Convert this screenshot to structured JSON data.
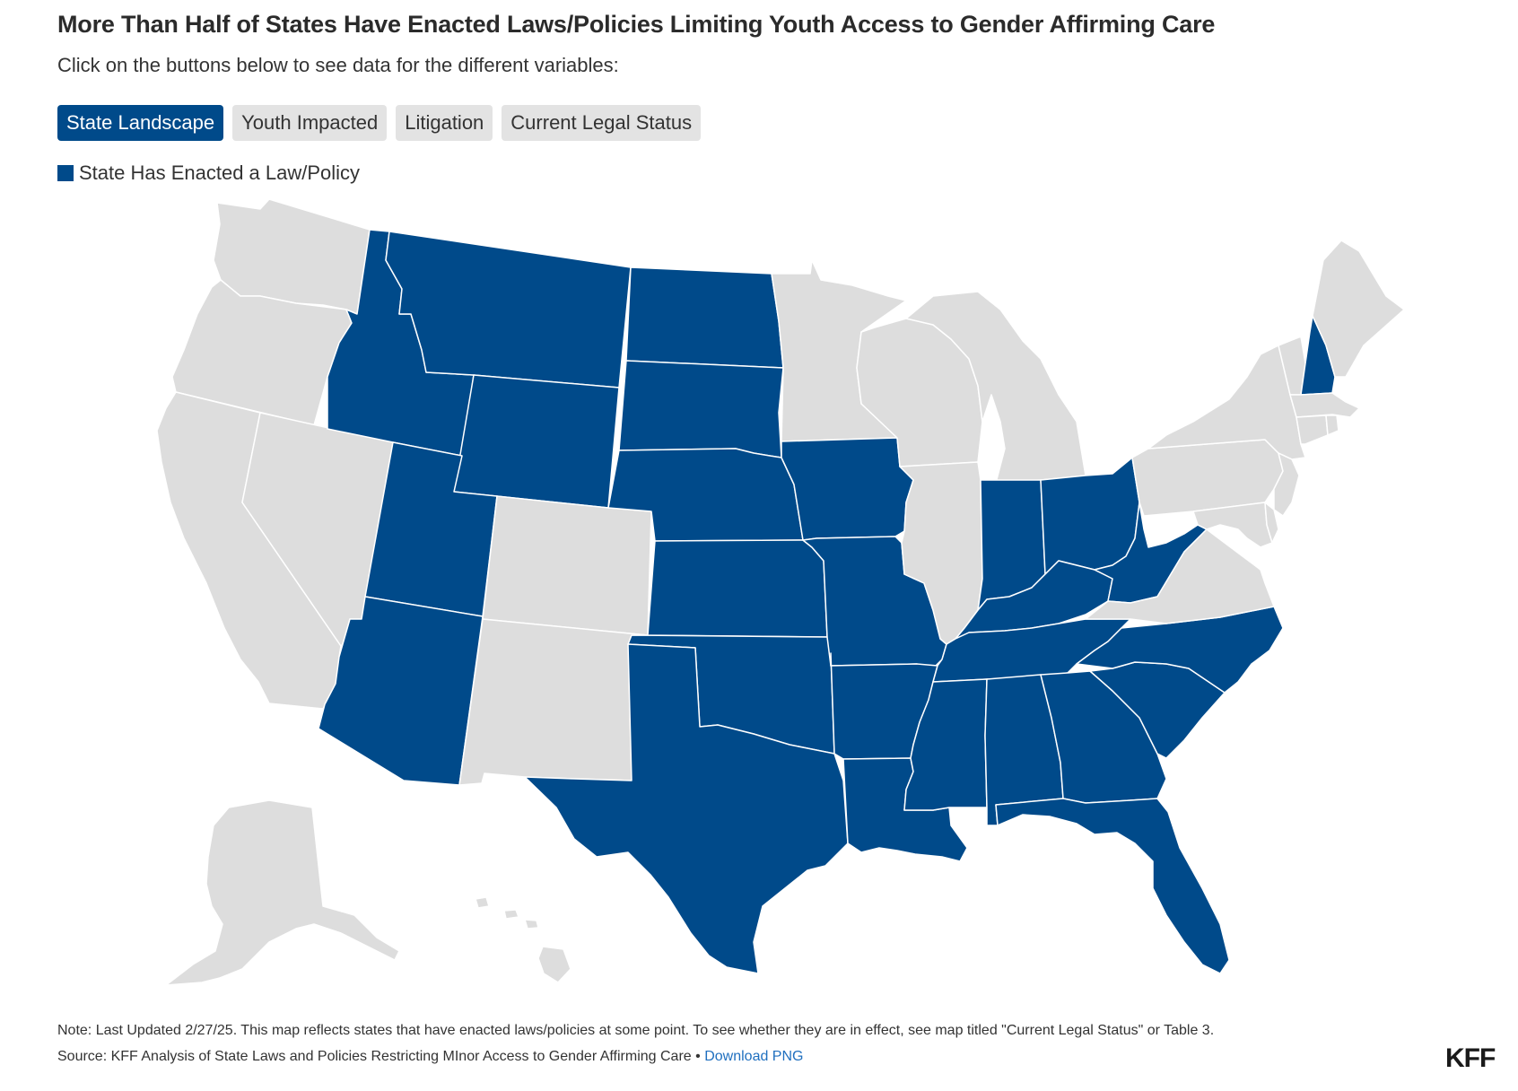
{
  "header": {
    "title": "More Than Half of States Have Enacted Laws/Policies Limiting Youth Access to Gender Affirming Care",
    "subtitle": "Click on the buttons below to see data for the different variables:"
  },
  "buttons": [
    {
      "label": "State Landscape",
      "active": true
    },
    {
      "label": "Youth Impacted",
      "active": false
    },
    {
      "label": "Litigation",
      "active": false
    },
    {
      "label": "Current Legal Status",
      "active": false
    }
  ],
  "legend": {
    "label": "State Has Enacted a Law/Policy"
  },
  "colors": {
    "enacted": "#004a8a",
    "not_enacted": "#dddddd",
    "active_button": "#004a8a"
  },
  "map_data": {
    "enacted": [
      "MT",
      "ID",
      "ND",
      "SD",
      "WY",
      "UT",
      "AZ",
      "NE",
      "KS",
      "OK",
      "TX",
      "IA",
      "MO",
      "AR",
      "LA",
      "MS",
      "AL",
      "TN",
      "KY",
      "IN",
      "OH",
      "WV",
      "GA",
      "FL",
      "SC",
      "NC",
      "NH"
    ],
    "not_enacted": [
      "WA",
      "OR",
      "CA",
      "NV",
      "CO",
      "NM",
      "MN",
      "WI",
      "IL",
      "MI",
      "NY",
      "PA",
      "VA",
      "MD",
      "DE",
      "NJ",
      "CT",
      "RI",
      "MA",
      "VT",
      "ME",
      "AK",
      "HI"
    ]
  },
  "footer": {
    "note": "Note: Last Updated 2/27/25. This map reflects states that have enacted laws/policies at some point. To see whether they are in effect, see map titled \"Current Legal Status\" or Table 3.",
    "source": "Source: KFF Analysis of State Laws and Policies Restricting MInor Access to Gender Affirming Care",
    "separator": "•",
    "download": "Download PNG",
    "logo": "KFF"
  }
}
